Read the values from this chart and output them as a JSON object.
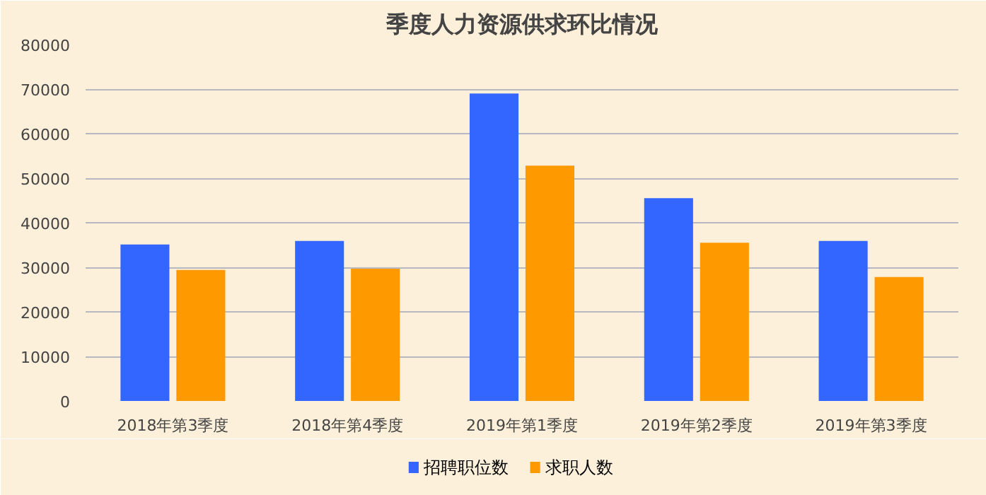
{
  "chart_data": {
    "type": "bar",
    "title": "季度人力资源供求环比情况",
    "categories": [
      "2018年第3季度",
      "2018年第4季度",
      "2019年第1季度",
      "2019年第2季度",
      "2019年第3季度"
    ],
    "series": [
      {
        "name": "招聘职位数",
        "color": "#3366ff",
        "values": [
          35100,
          35900,
          69000,
          45500,
          35900
        ]
      },
      {
        "name": "求职人数",
        "color": "#ff9900",
        "values": [
          29400,
          29700,
          52800,
          35500,
          27800
        ]
      }
    ],
    "ylim": [
      0,
      80000
    ],
    "yticks": [
      0,
      10000,
      20000,
      30000,
      40000,
      50000,
      60000,
      70000,
      80000
    ],
    "grid": "y",
    "legend": "bottom"
  }
}
